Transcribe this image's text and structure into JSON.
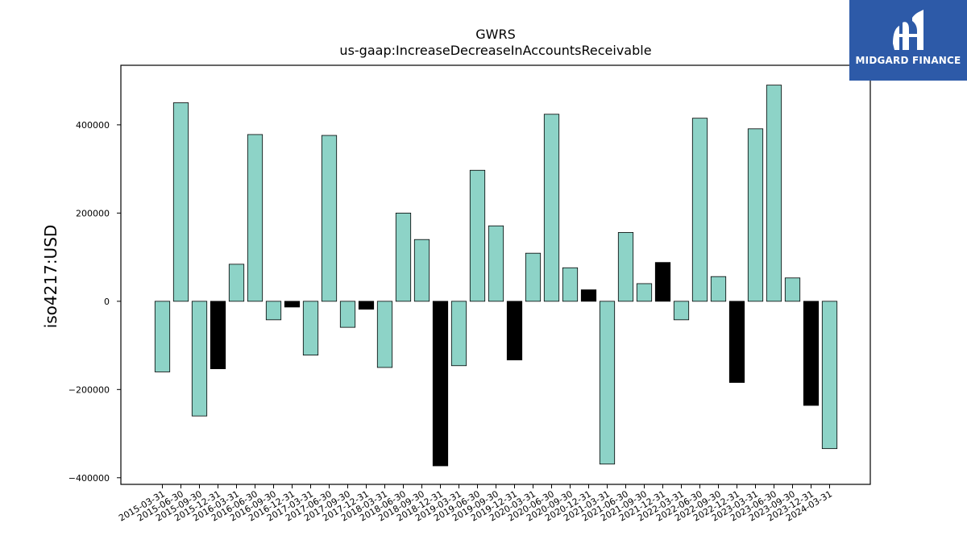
{
  "chart_data": {
    "type": "bar",
    "title": "GWRS",
    "subtitle": "us-gaap:IncreaseDecreaseInAccountsReceivable",
    "ylabel": "iso4217:USD",
    "xlabel": "",
    "ylim": [
      -415000,
      535000
    ],
    "yticks": [
      -400000,
      -200000,
      0,
      200000,
      400000
    ],
    "grid": false,
    "colors": {
      "default": "#8dd3c7",
      "highlight": "#000000"
    },
    "categories": [
      "2015-03-31",
      "2015-06-30",
      "2015-09-30",
      "2015-12-31",
      "2016-03-31",
      "2016-06-30",
      "2016-09-30",
      "2016-12-31",
      "2017-03-31",
      "2017-06-30",
      "2017-09-30",
      "2017-12-31",
      "2018-03-31",
      "2018-06-30",
      "2018-09-30",
      "2018-12-31",
      "2019-03-31",
      "2019-06-30",
      "2019-09-30",
      "2019-12-31",
      "2020-03-31",
      "2020-06-30",
      "2020-09-30",
      "2020-12-31",
      "2021-03-31",
      "2021-06-30",
      "2021-09-30",
      "2021-12-31",
      "2022-03-31",
      "2022-06-30",
      "2022-09-30",
      "2022-12-31",
      "2023-03-31",
      "2023-06-30",
      "2023-09-30",
      "2023-12-31",
      "2024-03-31"
    ],
    "values": [
      -160000,
      450000,
      -260000,
      -153000,
      84000,
      378000,
      -42000,
      -13000,
      -122000,
      376000,
      -59000,
      -18000,
      -150000,
      200000,
      140000,
      -373000,
      -146000,
      297000,
      171000,
      -133000,
      109000,
      424000,
      76000,
      26000,
      -369000,
      156000,
      40000,
      88000,
      -42000,
      415000,
      56000,
      -184000,
      391000,
      490000,
      53000,
      -236000,
      -334000
    ],
    "highlight": [
      false,
      false,
      false,
      true,
      false,
      false,
      false,
      true,
      false,
      false,
      false,
      true,
      false,
      false,
      false,
      true,
      false,
      false,
      false,
      true,
      false,
      false,
      false,
      true,
      false,
      false,
      false,
      true,
      false,
      false,
      false,
      true,
      false,
      false,
      false,
      true,
      false
    ]
  },
  "logo": {
    "text": "MIDGARD FINANCE"
  }
}
